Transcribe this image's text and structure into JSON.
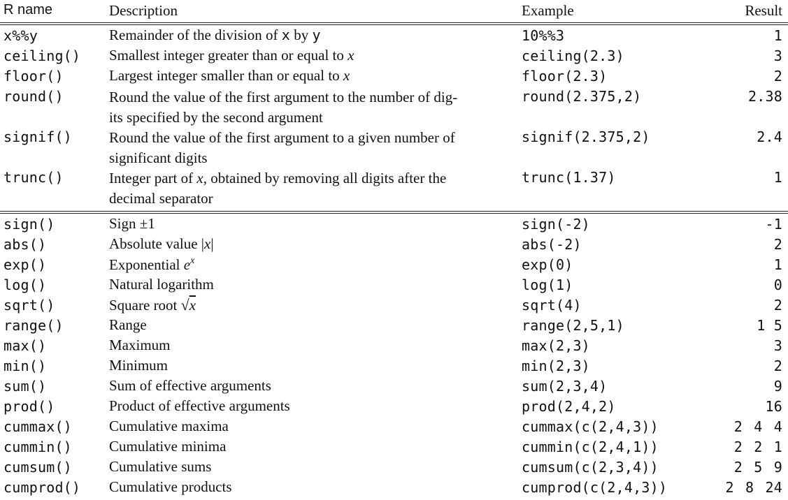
{
  "headers": {
    "name": "R name",
    "description": "Description",
    "example": "Example",
    "result": "Result"
  },
  "group1": [
    {
      "name": "x%%y",
      "desc": "Remainder of the division of x by y",
      "example": "10%%3",
      "result": "1"
    },
    {
      "name": "ceiling()",
      "desc": "Smallest integer greater than or equal to x",
      "example": "ceiling(2.3)",
      "result": "3"
    },
    {
      "name": "floor()",
      "desc": "Largest integer smaller than or equal to x",
      "example": "floor(2.3)",
      "result": "2"
    },
    {
      "name": "round()",
      "desc": "Round the value of the first argument to the number of dig-its specified by the second argument",
      "example": "round(2.375,2)",
      "result": "2.38"
    },
    {
      "name": "signif()",
      "desc": "Round the value of the first argument to a given number of significant digits",
      "example": "signif(2.375,2)",
      "result": "2.4"
    },
    {
      "name": "trunc()",
      "desc": "Integer part of x, obtained by removing all digits after the decimal separator",
      "example": "trunc(1.37)",
      "result": "1"
    }
  ],
  "group2": [
    {
      "name": "sign()",
      "desc": "Sign ±1",
      "example": "sign(-2)",
      "result": "-1"
    },
    {
      "name": "abs()",
      "desc": "Absolute value |x|",
      "example": "abs(-2)",
      "result": "2"
    },
    {
      "name": "exp()",
      "desc": "Exponential e^x",
      "example": "exp(0)",
      "result": "1"
    },
    {
      "name": "log()",
      "desc": "Natural logarithm",
      "example": "log(1)",
      "result": "0"
    },
    {
      "name": "sqrt()",
      "desc": "Square root √x",
      "example": "sqrt(4)",
      "result": "2"
    },
    {
      "name": "range()",
      "desc": "Range",
      "example": "range(2,5,1)",
      "result": "1 5"
    },
    {
      "name": "max()",
      "desc": "Maximum",
      "example": "max(2,3)",
      "result": "3"
    },
    {
      "name": "min()",
      "desc": "Minimum",
      "example": "min(2,3)",
      "result": "2"
    },
    {
      "name": "sum()",
      "desc": "Sum of effective arguments",
      "example": "sum(2,3,4)",
      "result": "9"
    },
    {
      "name": "prod()",
      "desc": "Product of effective arguments",
      "example": "prod(2,4,2)",
      "result": "16"
    },
    {
      "name": "cummax()",
      "desc": "Cumulative maxima",
      "example": "cummax(c(2,4,3))",
      "result": "2 4 4"
    },
    {
      "name": "cummin()",
      "desc": "Cumulative minima",
      "example": "cummin(c(2,4,1))",
      "result": "2 2 1"
    },
    {
      "name": "cumsum()",
      "desc": "Cumulative sums",
      "example": "cumsum(c(2,3,4))",
      "result": "2 5 9"
    },
    {
      "name": "cumprod()",
      "desc": "Cumulative products",
      "example": "cumprod(c(2,4,3))",
      "result": "2 8 24"
    }
  ]
}
